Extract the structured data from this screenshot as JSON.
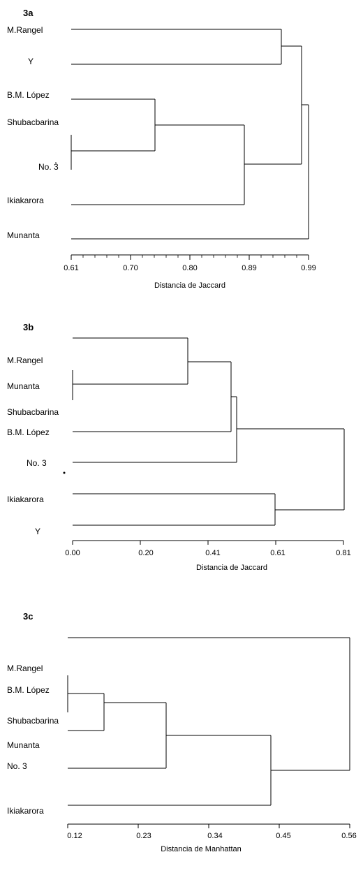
{
  "chart_data": [
    {
      "type": "dendrogram",
      "title": "3a",
      "xlabel": "Distancia de Jaccard",
      "tick_values": [
        0.61,
        0.7,
        0.8,
        0.89,
        0.99
      ],
      "tick_labels": [
        "0.61",
        "0.70",
        "0.80",
        "0.89",
        "0.99"
      ],
      "xlim": [
        0.61,
        0.99
      ],
      "leaf_labels": [
        "M.Rangel",
        "Y",
        "B.M. López",
        "Shubacbarina",
        "No. 3",
        "Ikiakarora",
        "Munanta"
      ],
      "merges": [
        {
          "left": "Shubacbarina",
          "right": "No. 3",
          "height": 0.61
        },
        {
          "left": "B.M. López",
          "right": "Shubacbarina + No. 3",
          "height": 0.74
        },
        {
          "left": "B.M. López + Shubacbarina + No. 3",
          "right": "Ikiakarora",
          "height": 0.88
        },
        {
          "left": "M.Rangel",
          "right": "Y",
          "height": 0.95
        },
        {
          "left": "M.Rangel + Y",
          "right": "B.M. López + Shubacbarina + No. 3 + Ikiakarora",
          "height": 0.98
        },
        {
          "left": "M.Rangel + Y + B.M. López + Shubacbarina + No. 3 + Ikiakarora",
          "right": "Munanta",
          "height": 0.99
        }
      ]
    },
    {
      "type": "dendrogram",
      "title": "3b",
      "xlabel": "Distancia de Jaccard",
      "tick_values": [
        0.0,
        0.2,
        0.41,
        0.61,
        0.81
      ],
      "tick_labels": [
        "0.00",
        "0.20",
        "0.41",
        "0.61",
        "0.81"
      ],
      "xlim": [
        0.0,
        0.81
      ],
      "leaf_labels": [
        "M.Rangel",
        "Munanta",
        "Shubacbarina",
        "B.M. López",
        "No. 3",
        "Ikiakarora",
        "Y"
      ],
      "merges": [
        {
          "left": "Munanta",
          "right": "Shubacbarina",
          "height": 0.0
        },
        {
          "left": "M.Rangel",
          "right": "Munanta + Shubacbarina",
          "height": 0.34
        },
        {
          "left": "M.Rangel + Munanta + Shubacbarina",
          "right": "B.M. López",
          "height": 0.46
        },
        {
          "left": "M.Rangel + Munanta + Shubacbarina + B.M. López",
          "right": "No. 3",
          "height": 0.48
        },
        {
          "left": "Ikiakarora",
          "right": "Y",
          "height": 0.61
        },
        {
          "left": "M.Rangel + Munanta + Shubacbarina + B.M. López + No. 3",
          "right": "Ikiakarora + Y",
          "height": 0.81
        }
      ]
    },
    {
      "type": "dendrogram",
      "title": "3c",
      "xlabel": "Distancia de Manhattan",
      "tick_values": [
        0.12,
        0.23,
        0.34,
        0.45,
        0.56
      ],
      "tick_labels": [
        "0.12",
        "0.23",
        "0.34",
        "0.45",
        "0.56"
      ],
      "xlim": [
        0.12,
        0.56
      ],
      "leaf_labels": [
        "M.Rangel",
        "B.M. López",
        "Shubacbarina",
        "Munanta",
        "No. 3",
        "Ikiakarora"
      ],
      "merges": [
        {
          "left": "M.Rangel",
          "right": "B.M. López",
          "height": 0.12
        },
        {
          "left": "M.Rangel + B.M. López",
          "right": "Shubacbarina",
          "height": 0.17
        },
        {
          "left": "M.Rangel + B.M. López + Shubacbarina",
          "right": "Munanta",
          "height": 0.26
        },
        {
          "left": "M.Rangel + B.M. López + Shubacbarina + Munanta",
          "right": "No. 3",
          "height": 0.43
        },
        {
          "left": "M.Rangel + B.M. López + Shubacbarina + Munanta + No. 3",
          "right": "Ikiakarora",
          "height": 0.56
        }
      ]
    }
  ]
}
